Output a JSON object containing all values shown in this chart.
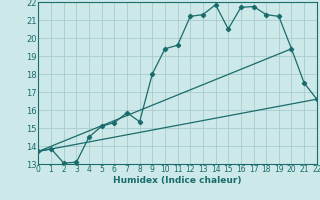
{
  "title": "",
  "xlabel": "Humidex (Indice chaleur)",
  "background_color": "#cce8e8",
  "grid_color": "#aacccc",
  "line_color": "#1a6b6b",
  "xlim": [
    0,
    22
  ],
  "ylim": [
    13,
    22
  ],
  "xticks": [
    0,
    1,
    2,
    3,
    4,
    5,
    6,
    7,
    8,
    9,
    10,
    11,
    12,
    13,
    14,
    15,
    16,
    17,
    18,
    19,
    20,
    21,
    22
  ],
  "yticks": [
    13,
    14,
    15,
    16,
    17,
    18,
    19,
    20,
    21,
    22
  ],
  "line1_x": [
    0,
    1,
    2,
    3,
    4,
    5,
    6,
    7,
    8,
    9,
    10,
    11,
    12,
    13,
    14,
    15,
    16,
    17,
    18,
    19,
    20,
    21,
    22
  ],
  "line1_y": [
    13.7,
    13.85,
    13.05,
    13.1,
    14.5,
    15.1,
    15.3,
    15.85,
    15.35,
    18.0,
    19.4,
    19.6,
    21.2,
    21.3,
    21.85,
    20.5,
    21.7,
    21.75,
    21.3,
    21.2,
    19.4,
    17.5,
    16.6
  ],
  "line2_x": [
    0,
    20
  ],
  "line2_y": [
    13.7,
    19.4
  ],
  "line3_x": [
    0,
    22
  ],
  "line3_y": [
    13.7,
    16.6
  ]
}
